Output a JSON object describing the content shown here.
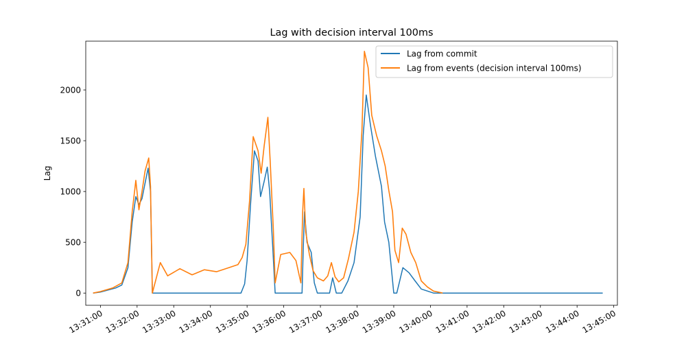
{
  "chart_data": {
    "type": "line",
    "title": "Lag with decision interval 100ms",
    "xlabel": "",
    "ylabel": "Lag",
    "x_tick_labels": [
      "13:31:00",
      "13:32:00",
      "13:33:00",
      "13:34:00",
      "13:35:00",
      "13:36:00",
      "13:37:00",
      "13:38:00",
      "13:39:00",
      "13:40:00",
      "13:41:00",
      "13:42:00",
      "13:43:00",
      "13:44:00",
      "13:45:00"
    ],
    "y_ticks": [
      0,
      500,
      1000,
      1500,
      2000
    ],
    "xlim": [
      "13:30:36",
      "13:45:06"
    ],
    "ylim": [
      -120,
      2480
    ],
    "grid": false,
    "legend_position": "upper-right",
    "series": [
      {
        "name": "Lag from commit",
        "color": "#1f77b4",
        "points": [
          [
            "13:30:48",
            0
          ],
          [
            "13:31:00",
            10
          ],
          [
            "13:31:25",
            50
          ],
          [
            "13:31:35",
            80
          ],
          [
            "13:31:45",
            250
          ],
          [
            "13:31:52",
            700
          ],
          [
            "13:31:58",
            950
          ],
          [
            "13:32:03",
            870
          ],
          [
            "13:32:08",
            930
          ],
          [
            "13:32:13",
            1080
          ],
          [
            "13:32:18",
            1230
          ],
          [
            "13:32:22",
            1000
          ],
          [
            "13:32:25",
            0
          ],
          [
            "13:32:40",
            0
          ],
          [
            "13:33:30",
            0
          ],
          [
            "13:34:10",
            0
          ],
          [
            "13:34:50",
            0
          ],
          [
            "13:34:56",
            90
          ],
          [
            "13:35:00",
            320
          ],
          [
            "13:35:06",
            900
          ],
          [
            "13:35:12",
            1400
          ],
          [
            "13:35:18",
            1300
          ],
          [
            "13:35:22",
            950
          ],
          [
            "13:35:28",
            1100
          ],
          [
            "13:35:33",
            1240
          ],
          [
            "13:35:37",
            1000
          ],
          [
            "13:35:42",
            450
          ],
          [
            "13:35:46",
            0
          ],
          [
            "13:35:55",
            0
          ],
          [
            "13:36:20",
            0
          ],
          [
            "13:36:30",
            0
          ],
          [
            "13:36:32",
            450
          ],
          [
            "13:36:34",
            800
          ],
          [
            "13:36:38",
            500
          ],
          [
            "13:36:45",
            400
          ],
          [
            "13:36:50",
            100
          ],
          [
            "13:36:55",
            0
          ],
          [
            "13:37:15",
            0
          ],
          [
            "13:37:20",
            150
          ],
          [
            "13:37:26",
            0
          ],
          [
            "13:37:35",
            0
          ],
          [
            "13:37:45",
            120
          ],
          [
            "13:37:55",
            300
          ],
          [
            "13:38:05",
            750
          ],
          [
            "13:38:10",
            1550
          ],
          [
            "13:38:15",
            1950
          ],
          [
            "13:38:22",
            1650
          ],
          [
            "13:38:30",
            1350
          ],
          [
            "13:38:40",
            1050
          ],
          [
            "13:38:45",
            700
          ],
          [
            "13:38:52",
            500
          ],
          [
            "13:39:00",
            0
          ],
          [
            "13:39:05",
            0
          ],
          [
            "13:39:15",
            250
          ],
          [
            "13:39:25",
            200
          ],
          [
            "13:39:35",
            120
          ],
          [
            "13:39:45",
            40
          ],
          [
            "13:40:05",
            0
          ],
          [
            "13:40:40",
            0
          ],
          [
            "13:41:30",
            0
          ],
          [
            "13:42:30",
            0
          ],
          [
            "13:43:30",
            0
          ],
          [
            "13:44:42",
            0
          ]
        ]
      },
      {
        "name": "Lag from events (decision interval 100ms)",
        "color": "#ff7f0e",
        "points": [
          [
            "13:30:48",
            0
          ],
          [
            "13:31:00",
            15
          ],
          [
            "13:31:20",
            50
          ],
          [
            "13:31:35",
            100
          ],
          [
            "13:31:45",
            300
          ],
          [
            "13:31:52",
            800
          ],
          [
            "13:31:58",
            1110
          ],
          [
            "13:32:03",
            820
          ],
          [
            "13:32:08",
            1000
          ],
          [
            "13:32:13",
            1200
          ],
          [
            "13:32:19",
            1330
          ],
          [
            "13:32:22",
            1050
          ],
          [
            "13:32:25",
            0
          ],
          [
            "13:32:38",
            300
          ],
          [
            "13:32:50",
            170
          ],
          [
            "13:33:10",
            240
          ],
          [
            "13:33:30",
            180
          ],
          [
            "13:33:50",
            230
          ],
          [
            "13:34:10",
            210
          ],
          [
            "13:34:30",
            250
          ],
          [
            "13:34:45",
            280
          ],
          [
            "13:34:52",
            350
          ],
          [
            "13:34:58",
            480
          ],
          [
            "13:35:04",
            900
          ],
          [
            "13:35:10",
            1540
          ],
          [
            "13:35:18",
            1400
          ],
          [
            "13:35:23",
            1180
          ],
          [
            "13:35:28",
            1450
          ],
          [
            "13:35:34",
            1730
          ],
          [
            "13:35:38",
            1280
          ],
          [
            "13:35:43",
            620
          ],
          [
            "13:35:46",
            100
          ],
          [
            "13:35:55",
            380
          ],
          [
            "13:36:10",
            400
          ],
          [
            "13:36:20",
            320
          ],
          [
            "13:36:28",
            100
          ],
          [
            "13:36:31",
            800
          ],
          [
            "13:36:33",
            1030
          ],
          [
            "13:36:36",
            600
          ],
          [
            "13:36:42",
            380
          ],
          [
            "13:36:48",
            220
          ],
          [
            "13:36:55",
            150
          ],
          [
            "13:37:05",
            120
          ],
          [
            "13:37:12",
            170
          ],
          [
            "13:37:18",
            300
          ],
          [
            "13:37:24",
            160
          ],
          [
            "13:37:30",
            110
          ],
          [
            "13:37:38",
            150
          ],
          [
            "13:37:46",
            340
          ],
          [
            "13:37:55",
            600
          ],
          [
            "13:38:02",
            1000
          ],
          [
            "13:38:08",
            1600
          ],
          [
            "13:38:12",
            2380
          ],
          [
            "13:38:18",
            2220
          ],
          [
            "13:38:24",
            1750
          ],
          [
            "13:38:32",
            1550
          ],
          [
            "13:38:40",
            1400
          ],
          [
            "13:38:46",
            1250
          ],
          [
            "13:38:52",
            1010
          ],
          [
            "13:38:58",
            800
          ],
          [
            "13:39:02",
            420
          ],
          [
            "13:39:08",
            300
          ],
          [
            "13:39:14",
            640
          ],
          [
            "13:39:20",
            580
          ],
          [
            "13:39:28",
            400
          ],
          [
            "13:39:36",
            300
          ],
          [
            "13:39:45",
            120
          ],
          [
            "13:39:55",
            60
          ],
          [
            "13:40:05",
            20
          ],
          [
            "13:40:20",
            0
          ]
        ]
      }
    ]
  }
}
